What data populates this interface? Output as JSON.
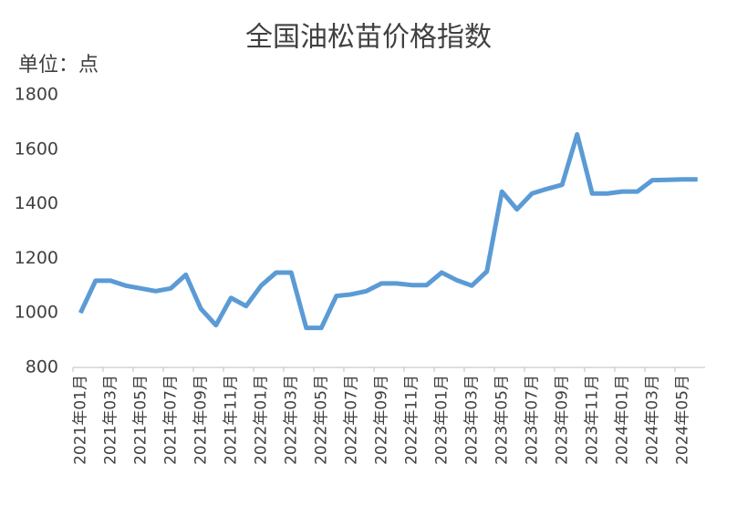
{
  "chart_data": {
    "type": "line",
    "title": "全国油松苗价格指数",
    "unit_label": "单位：点",
    "categories": [
      "2021年01月",
      null,
      "2021年03月",
      null,
      "2021年05月",
      null,
      "2021年07月",
      null,
      "2021年09月",
      null,
      "2021年11月",
      null,
      "2022年01月",
      null,
      "2022年03月",
      null,
      "2022年05月",
      null,
      "2022年07月",
      null,
      "2022年09月",
      null,
      "2022年11月",
      null,
      "2023年01月",
      null,
      "2023年03月",
      null,
      "2023年05月",
      null,
      "2023年07月",
      null,
      "2023年09月",
      null,
      "2023年11月",
      null,
      "2024年01月",
      null,
      "2024年03月",
      null,
      "2024年05月",
      null
    ],
    "series": [
      {
        "name": "全国油松苗价格指数",
        "color": "#5b9bd5",
        "values": [
          1000,
          1118,
          1118,
          1100,
          1090,
          1080,
          1090,
          1140,
          1015,
          955,
          1055,
          1025,
          1100,
          1148,
          1148,
          945,
          945,
          1062,
          1068,
          1080,
          1108,
          1108,
          1102,
          1102,
          1148,
          1120,
          1100,
          1152,
          1445,
          1380,
          1438,
          1455,
          1470,
          1655,
          1438,
          1438,
          1445,
          1445,
          1487,
          1488,
          1490,
          1490
        ]
      }
    ],
    "ylim": [
      800,
      1800
    ],
    "yticks": [
      800,
      1000,
      1200,
      1400,
      1600,
      1800
    ],
    "grid": false
  }
}
